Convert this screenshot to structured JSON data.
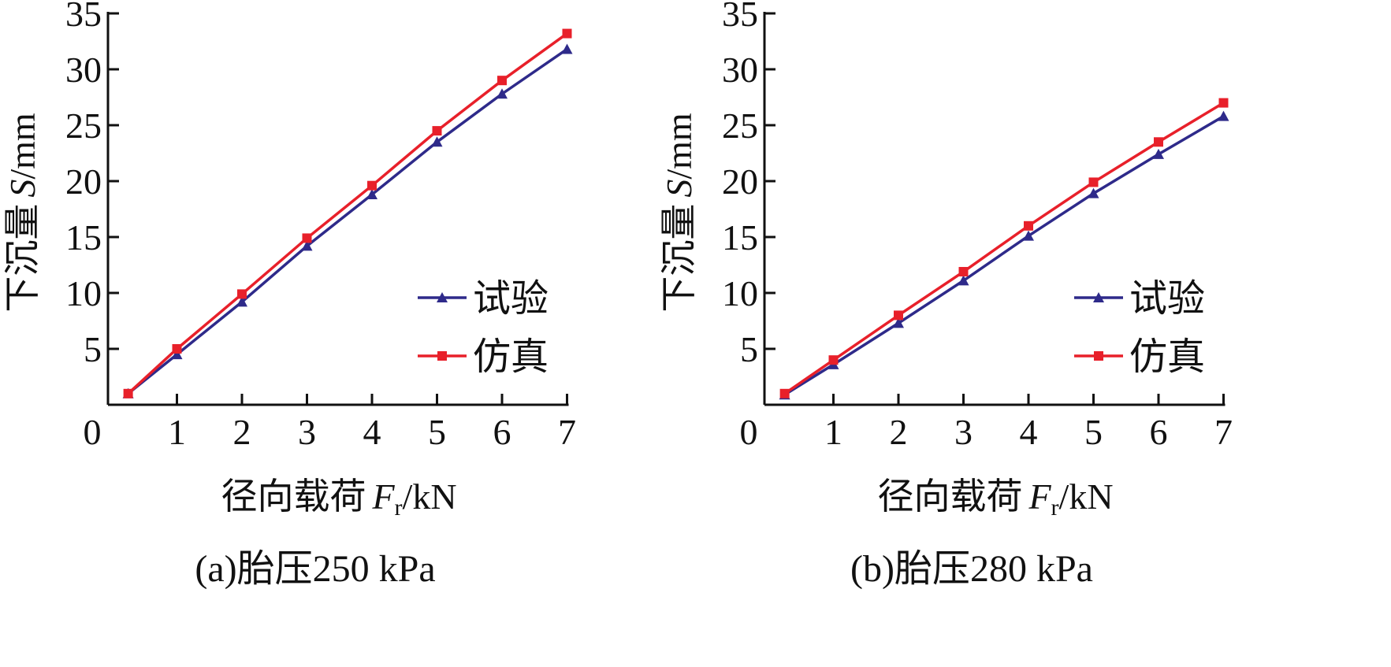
{
  "chart_data": [
    {
      "type": "line",
      "caption": "(a)胎压250 kPa",
      "xlabel": "径向载荷",
      "xlabel_var": "F",
      "xlabel_sub": "r",
      "xlabel_unit": "/kN",
      "ylabel": "下沉量",
      "ylabel_var": "S",
      "ylabel_unit": "/mm",
      "xlim": [
        0,
        7
      ],
      "ylim": [
        0,
        35
      ],
      "xticks": [
        "0",
        "1",
        "2",
        "3",
        "4",
        "5",
        "6",
        "7"
      ],
      "yticks": [
        "5",
        "10",
        "15",
        "20",
        "25",
        "30",
        "35"
      ],
      "grid": false,
      "legend_position": "bottom-right",
      "x": [
        0.25,
        1,
        2,
        3,
        4,
        5,
        6,
        7
      ],
      "series": [
        {
          "name": "试验",
          "color": "#2e2a8a",
          "marker": "triangle",
          "values": [
            1.0,
            4.5,
            9.2,
            14.2,
            18.8,
            23.5,
            27.8,
            31.8
          ]
        },
        {
          "name": "仿真",
          "color": "#e8202a",
          "marker": "square",
          "values": [
            1.0,
            5.0,
            9.9,
            14.9,
            19.6,
            24.5,
            29.0,
            33.2
          ]
        }
      ]
    },
    {
      "type": "line",
      "caption": "(b)胎压280 kPa",
      "xlabel": "径向载荷",
      "xlabel_var": "F",
      "xlabel_sub": "r",
      "xlabel_unit": "/kN",
      "ylabel": "下沉量",
      "ylabel_var": "S",
      "ylabel_unit": "/mm",
      "xlim": [
        0,
        7
      ],
      "ylim": [
        0,
        35
      ],
      "xticks": [
        "0",
        "1",
        "2",
        "3",
        "4",
        "5",
        "6",
        "7"
      ],
      "yticks": [
        "5",
        "10",
        "15",
        "20",
        "25",
        "30",
        "35"
      ],
      "grid": false,
      "legend_position": "bottom-right",
      "x": [
        0.25,
        1,
        2,
        3,
        4,
        5,
        6,
        7
      ],
      "series": [
        {
          "name": "试验",
          "color": "#2e2a8a",
          "marker": "triangle",
          "values": [
            0.9,
            3.6,
            7.3,
            11.1,
            15.1,
            18.9,
            22.4,
            25.8
          ]
        },
        {
          "name": "仿真",
          "color": "#e8202a",
          "marker": "square",
          "values": [
            1.0,
            4.0,
            8.0,
            11.9,
            16.0,
            19.9,
            23.5,
            27.0
          ]
        }
      ]
    }
  ]
}
